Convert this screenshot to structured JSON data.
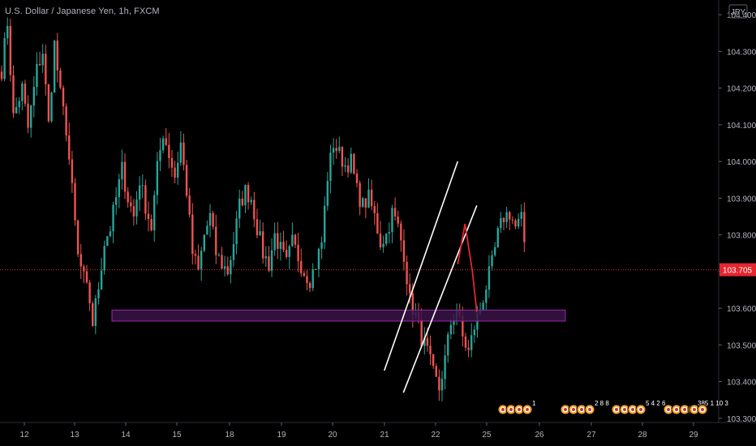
{
  "header": {
    "title": "U.S. Dollar / Japanese Yen, 1h, FXCM"
  },
  "currency_badge": "JPY",
  "last_price_label": "103.705",
  "colors": {
    "background": "#000000",
    "up": "#26a69a",
    "down": "#ef5350",
    "text": "#b2b5be",
    "zone_border": "#9c27b0",
    "zone_fill": "#3a1446",
    "channel": "#ffffff",
    "projection": "#e5252f",
    "price_tag": "#e5252f"
  },
  "chart_data": {
    "type": "candlestick",
    "title": "U.S. Dollar / Japanese Yen, 1h, FXCM",
    "ylim": [
      103.25,
      104.48
    ],
    "y_ticks": [
      "104.400",
      "104.300",
      "104.200",
      "104.100",
      "104.000",
      "103.900",
      "103.800",
      "103.700",
      "103.600",
      "103.500",
      "103.400",
      "103.300"
    ],
    "x_ticks": [
      "12",
      "13",
      "14",
      "15",
      "18",
      "19",
      "20",
      "21",
      "22",
      "25",
      "26",
      "27",
      "28",
      "29"
    ],
    "last_price": 103.705,
    "anchors": [
      [
        0,
        104.25
      ],
      [
        2,
        104.38
      ],
      [
        4,
        104.12
      ],
      [
        7,
        104.2
      ],
      [
        9,
        104.09
      ],
      [
        12,
        104.25
      ],
      [
        14,
        104.3
      ],
      [
        16,
        104.1
      ],
      [
        18,
        104.32
      ],
      [
        20,
        104.18
      ],
      [
        22,
        104.09
      ],
      [
        24,
        103.92
      ],
      [
        26,
        103.74
      ],
      [
        28,
        103.68
      ],
      [
        30,
        103.62
      ],
      [
        31,
        103.56
      ],
      [
        33,
        103.66
      ],
      [
        35,
        103.78
      ],
      [
        37,
        103.82
      ],
      [
        39,
        103.9
      ],
      [
        41,
        103.98
      ],
      [
        43,
        103.9
      ],
      [
        45,
        103.85
      ],
      [
        47,
        103.95
      ],
      [
        49,
        103.88
      ],
      [
        51,
        103.82
      ],
      [
        53,
        103.98
      ],
      [
        55,
        104.08
      ],
      [
        57,
        104.02
      ],
      [
        59,
        103.96
      ],
      [
        61,
        104.05
      ],
      [
        63,
        103.92
      ],
      [
        65,
        103.75
      ],
      [
        67,
        103.7
      ],
      [
        69,
        103.8
      ],
      [
        71,
        103.85
      ],
      [
        73,
        103.75
      ],
      [
        75,
        103.72
      ],
      [
        77,
        103.7
      ],
      [
        79,
        103.78
      ],
      [
        81,
        103.88
      ],
      [
        83,
        103.92
      ],
      [
        85,
        103.9
      ],
      [
        87,
        103.82
      ],
      [
        89,
        103.75
      ],
      [
        91,
        103.72
      ],
      [
        93,
        103.8
      ],
      [
        95,
        103.76
      ],
      [
        97,
        103.72
      ],
      [
        99,
        103.78
      ],
      [
        101,
        103.74
      ],
      [
        103,
        103.7
      ],
      [
        105,
        103.68
      ],
      [
        107,
        103.72
      ],
      [
        109,
        103.78
      ],
      [
        111,
        103.96
      ],
      [
        113,
        104.05
      ],
      [
        115,
        104.02
      ],
      [
        117,
        103.99
      ],
      [
        119,
        104.0
      ],
      [
        121,
        103.92
      ],
      [
        123,
        103.88
      ],
      [
        125,
        103.9
      ],
      [
        127,
        103.85
      ],
      [
        129,
        103.78
      ],
      [
        131,
        103.8
      ],
      [
        133,
        103.86
      ],
      [
        135,
        103.82
      ],
      [
        137,
        103.75
      ],
      [
        139,
        103.62
      ],
      [
        141,
        103.58
      ],
      [
        143,
        103.52
      ],
      [
        145,
        103.48
      ],
      [
        147,
        103.42
      ],
      [
        149,
        103.38
      ],
      [
        151,
        103.46
      ],
      [
        153,
        103.56
      ],
      [
        155,
        103.6
      ],
      [
        157,
        103.52
      ],
      [
        159,
        103.48
      ],
      [
        161,
        103.55
      ],
      [
        163,
        103.6
      ],
      [
        165,
        103.66
      ],
      [
        167,
        103.72
      ],
      [
        169,
        103.8
      ],
      [
        171,
        103.85
      ],
      [
        173,
        103.86
      ],
      [
        175,
        103.82
      ],
      [
        177,
        103.84
      ],
      [
        178,
        103.78
      ]
    ],
    "support_zone": [
      103.565,
      103.595
    ],
    "channel_lines": [
      [
        [
          87.5,
          103.43
        ],
        [
          112.5,
          104.0
        ]
      ],
      [
        [
          94.0,
          103.37
        ],
        [
          119.0,
          103.88
        ]
      ]
    ],
    "projection": [
      [
        112.5,
        103.72
      ],
      [
        115.0,
        103.83
      ],
      [
        117.5,
        103.7
      ],
      [
        119.0,
        103.59
      ]
    ]
  }
}
